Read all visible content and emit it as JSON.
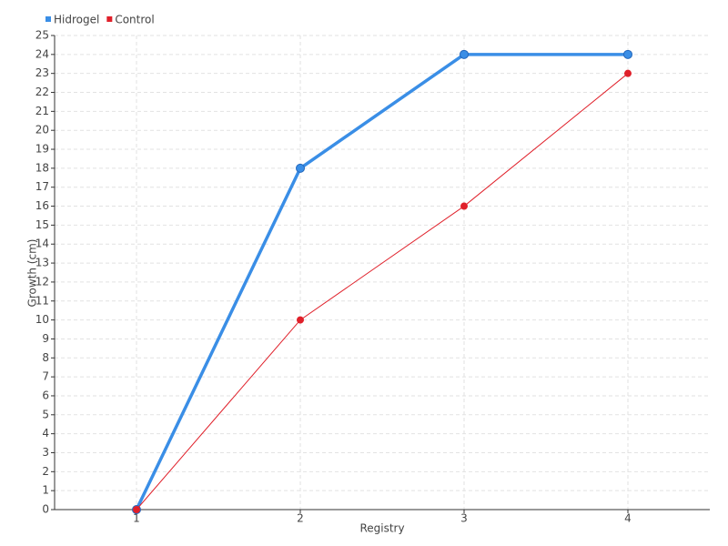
{
  "chart_data": {
    "type": "line",
    "x_label": "Registry",
    "y_label": "Growth (cm)",
    "categories": [
      "1",
      "2",
      "3",
      "4"
    ],
    "series": [
      {
        "name": "Hidrogel",
        "color": "#3a8ee6",
        "values": [
          0,
          18,
          24,
          24
        ]
      },
      {
        "name": "Control",
        "color": "#e0202a",
        "values": [
          0,
          10,
          16,
          23
        ]
      }
    ],
    "ylim": [
      0,
      25
    ],
    "yticks": [
      0,
      1,
      2,
      3,
      4,
      5,
      6,
      7,
      8,
      9,
      10,
      11,
      12,
      13,
      14,
      15,
      16,
      17,
      18,
      19,
      20,
      21,
      22,
      23,
      24,
      25
    ],
    "grid": true,
    "legend": "top-left"
  }
}
